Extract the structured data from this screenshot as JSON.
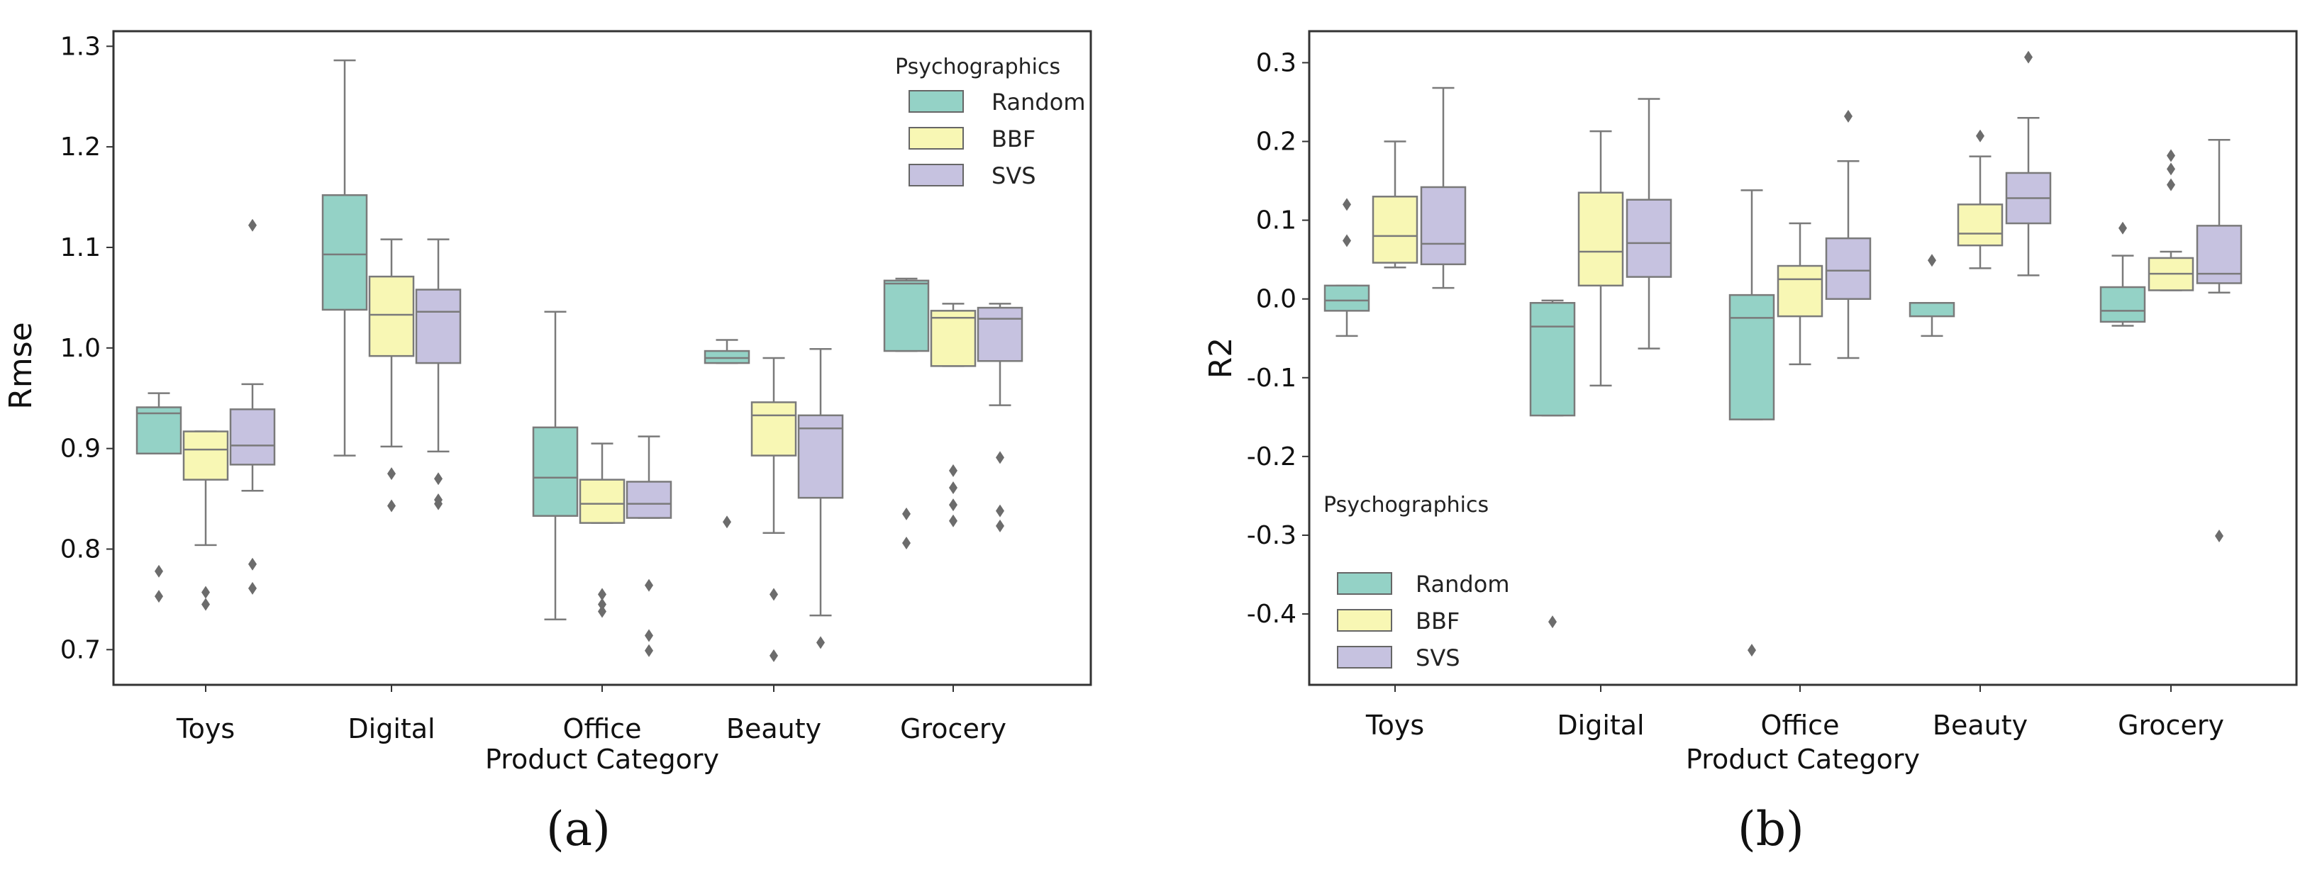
{
  "colors": {
    "Random": "#94d2c6",
    "BBF": "#f8f7b4",
    "SVS": "#c6c2e0",
    "line": "#7a7a7a",
    "axis": "#333333"
  },
  "chart_data": [
    {
      "type": "box",
      "panel": "(a)",
      "xlabel": "Product Category",
      "ylabel": "Rmse",
      "ylim": [
        0.665,
        1.315
      ],
      "yticks": [
        "0.7",
        "0.8",
        "0.9",
        "1.0",
        "1.1",
        "1.2",
        "1.3"
      ],
      "categories": [
        "Toys",
        "Digital",
        "Office",
        "Beauty",
        "Grocery"
      ],
      "legend": {
        "title": "Psychographics",
        "position": "top-right",
        "entries": [
          "Random",
          "BBF",
          "SVS"
        ]
      },
      "series": [
        {
          "name": "Random",
          "boxes": [
            {
              "wlo": 0.895,
              "q1": 0.895,
              "med": 0.935,
              "q3": 0.941,
              "whi": 0.955,
              "out": [
                0.778,
                0.753
              ]
            },
            {
              "wlo": 0.893,
              "q1": 1.038,
              "med": 1.093,
              "q3": 1.152,
              "whi": 1.286,
              "out": []
            },
            {
              "wlo": 0.73,
              "q1": 0.833,
              "med": 0.871,
              "q3": 0.921,
              "whi": 1.036,
              "out": []
            },
            {
              "wlo": 0.985,
              "q1": 0.985,
              "med": 0.99,
              "q3": 0.997,
              "whi": 1.008,
              "out": [
                0.827
              ]
            },
            {
              "wlo": 0.997,
              "q1": 0.997,
              "med": 1.064,
              "q3": 1.067,
              "whi": 1.069,
              "out": [
                0.835,
                0.806
              ]
            }
          ]
        },
        {
          "name": "BBF",
          "boxes": [
            {
              "wlo": 0.804,
              "q1": 0.869,
              "med": 0.899,
              "q3": 0.917,
              "whi": 0.917,
              "out": [
                0.757,
                0.745
              ]
            },
            {
              "wlo": 0.902,
              "q1": 0.992,
              "med": 1.033,
              "q3": 1.071,
              "whi": 1.108,
              "out": [
                0.875,
                0.843
              ]
            },
            {
              "wlo": 0.826,
              "q1": 0.826,
              "med": 0.845,
              "q3": 0.869,
              "whi": 0.905,
              "out": [
                0.755,
                0.745,
                0.738
              ]
            },
            {
              "wlo": 0.816,
              "q1": 0.893,
              "med": 0.933,
              "q3": 0.946,
              "whi": 0.99,
              "out": [
                0.755,
                0.694
              ]
            },
            {
              "wlo": 0.982,
              "q1": 0.982,
              "med": 1.03,
              "q3": 1.037,
              "whi": 1.044,
              "out": [
                0.878,
                0.861,
                0.844,
                0.828
              ]
            }
          ]
        },
        {
          "name": "SVS",
          "boxes": [
            {
              "wlo": 0.858,
              "q1": 0.884,
              "med": 0.903,
              "q3": 0.939,
              "whi": 0.964,
              "out": [
                1.122,
                0.785,
                0.761
              ]
            },
            {
              "wlo": 0.897,
              "q1": 0.985,
              "med": 1.036,
              "q3": 1.058,
              "whi": 1.108,
              "out": [
                0.87,
                0.849,
                0.845
              ]
            },
            {
              "wlo": 0.831,
              "q1": 0.831,
              "med": 0.845,
              "q3": 0.867,
              "whi": 0.912,
              "out": [
                0.764,
                0.714,
                0.699
              ]
            },
            {
              "wlo": 0.734,
              "q1": 0.851,
              "med": 0.92,
              "q3": 0.933,
              "whi": 0.999,
              "out": [
                0.707
              ]
            },
            {
              "wlo": 0.943,
              "q1": 0.987,
              "med": 1.029,
              "q3": 1.04,
              "whi": 1.044,
              "out": [
                0.891,
                0.838,
                0.823
              ]
            }
          ]
        }
      ]
    },
    {
      "type": "box",
      "panel": "(b)",
      "xlabel": "Product Category",
      "ylabel": "R2",
      "ylim": [
        -0.49,
        0.34
      ],
      "yticks": [
        "0.3",
        "0.2",
        "0.1",
        "0.0",
        "-0.1",
        "-0.2",
        "-0.3",
        "-0.4"
      ],
      "categories": [
        "Toys",
        "Digital",
        "Office",
        "Beauty",
        "Grocery"
      ],
      "legend": {
        "title": "Psychographics",
        "position": "bottom-left",
        "entries": [
          "Random",
          "BBF",
          "SVS"
        ]
      },
      "series": [
        {
          "name": "Random",
          "boxes": [
            {
              "wlo": -0.047,
              "q1": -0.015,
              "med": -0.002,
              "q3": 0.017,
              "whi": 0.017,
              "out": [
                0.12,
                0.074
              ]
            },
            {
              "wlo": -0.148,
              "q1": -0.148,
              "med": -0.035,
              "q3": -0.005,
              "whi": -0.002,
              "out": [
                -0.41
              ]
            },
            {
              "wlo": -0.153,
              "q1": -0.153,
              "med": -0.024,
              "q3": 0.005,
              "whi": 0.138,
              "out": [
                -0.446
              ]
            },
            {
              "wlo": -0.047,
              "q1": -0.022,
              "med": -0.005,
              "q3": -0.005,
              "whi": -0.005,
              "out": [
                0.049
              ]
            },
            {
              "wlo": -0.034,
              "q1": -0.029,
              "med": -0.015,
              "q3": 0.015,
              "whi": 0.055,
              "out": [
                0.09
              ]
            }
          ]
        },
        {
          "name": "BBF",
          "boxes": [
            {
              "wlo": 0.04,
              "q1": 0.046,
              "med": 0.08,
              "q3": 0.13,
              "whi": 0.2,
              "out": []
            },
            {
              "wlo": -0.11,
              "q1": 0.017,
              "med": 0.06,
              "q3": 0.135,
              "whi": 0.213,
              "out": []
            },
            {
              "wlo": -0.083,
              "q1": -0.022,
              "med": 0.025,
              "q3": 0.042,
              "whi": 0.096,
              "out": []
            },
            {
              "wlo": 0.039,
              "q1": 0.068,
              "med": 0.083,
              "q3": 0.12,
              "whi": 0.181,
              "out": [
                0.207
              ]
            },
            {
              "wlo": 0.011,
              "q1": 0.011,
              "med": 0.032,
              "q3": 0.052,
              "whi": 0.06,
              "out": [
                0.182,
                0.165,
                0.145
              ]
            }
          ]
        },
        {
          "name": "SVS",
          "boxes": [
            {
              "wlo": 0.014,
              "q1": 0.044,
              "med": 0.07,
              "q3": 0.142,
              "whi": 0.268,
              "out": []
            },
            {
              "wlo": -0.063,
              "q1": 0.028,
              "med": 0.071,
              "q3": 0.126,
              "whi": 0.254,
              "out": []
            },
            {
              "wlo": -0.075,
              "q1": 0.0,
              "med": 0.036,
              "q3": 0.077,
              "whi": 0.175,
              "out": [
                0.232
              ]
            },
            {
              "wlo": 0.03,
              "q1": 0.096,
              "med": 0.128,
              "q3": 0.16,
              "whi": 0.23,
              "out": [
                0.307
              ]
            },
            {
              "wlo": 0.008,
              "q1": 0.02,
              "med": 0.032,
              "q3": 0.093,
              "whi": 0.202,
              "out": [
                -0.301
              ]
            }
          ]
        }
      ]
    }
  ]
}
